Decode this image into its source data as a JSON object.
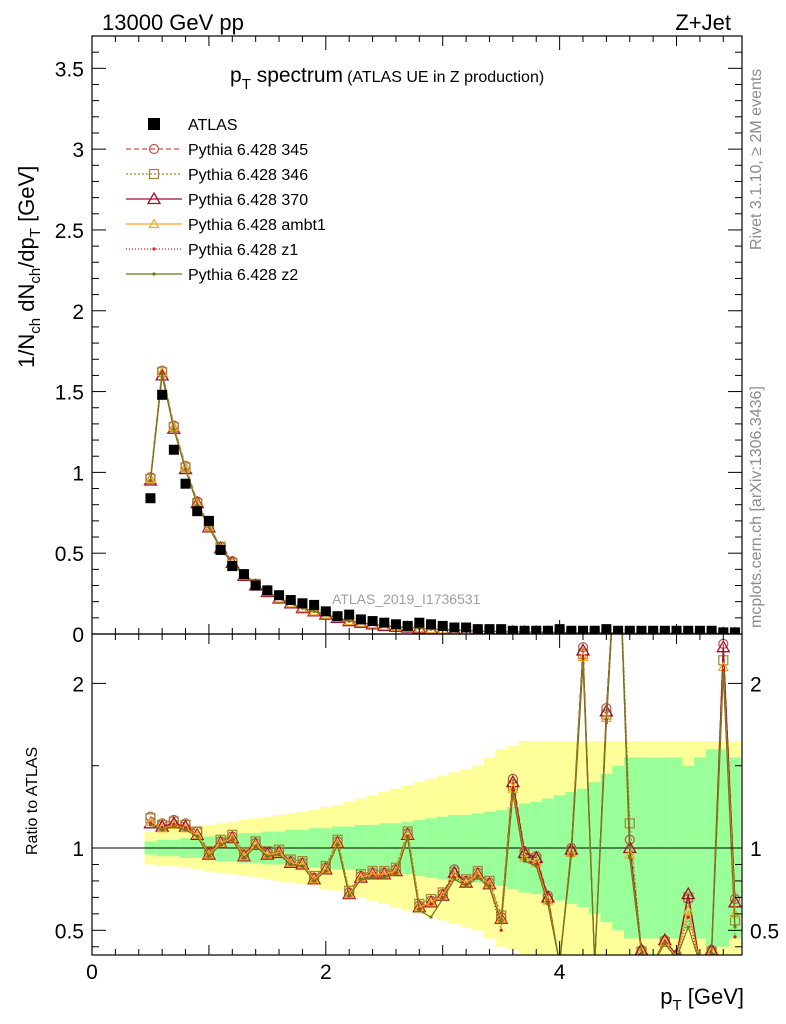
{
  "header": {
    "left": "13000 GeV pp",
    "right": "Z+Jet"
  },
  "side_labels": {
    "rivet": "Rivet 3.1.10, ≥ 2M events",
    "mcplots": "mcplots.cern.ch [arXiv:1306.3436]"
  },
  "chart_data": [
    {
      "type": "scatter",
      "title": "p_T spectrum",
      "title_main": "p",
      "title_sub": "T",
      "title_rest": " spectrum",
      "subtitle": "(ATLAS UE in Z production)",
      "ylabel": "1/N_ch dN_ch/dp_T [GeV]",
      "watermark": "ATLAS_2019_I1736531",
      "xlim": [
        0,
        5.56
      ],
      "ylim": [
        0,
        3.7
      ],
      "yticks": [
        0,
        0.5,
        1,
        1.5,
        2,
        2.5,
        3,
        3.5
      ],
      "ytick_labels": [
        "0",
        "0.5",
        "1",
        "1.5",
        "2",
        "2.5",
        "3",
        "3.5"
      ],
      "x": [
        0.5,
        0.6,
        0.7,
        0.8,
        0.9,
        1.0,
        1.1,
        1.2,
        1.3,
        1.4,
        1.5,
        1.6,
        1.7,
        1.8,
        1.9,
        2.0,
        2.1,
        2.2,
        2.3,
        2.4,
        2.5,
        2.6,
        2.7,
        2.8,
        2.9,
        3.0,
        3.1,
        3.2,
        3.3,
        3.4,
        3.5,
        3.6,
        3.7,
        3.8,
        3.9,
        4.0,
        4.1,
        4.2,
        4.3,
        4.4,
        4.5,
        4.6,
        4.7,
        4.8,
        4.9,
        5.0,
        5.1,
        5.2,
        5.3,
        5.4,
        5.5
      ],
      "series": [
        {
          "name": "ATLAS",
          "color": "#000000",
          "marker": "square",
          "values": [
            0.84,
            1.48,
            1.14,
            0.93,
            0.76,
            0.7,
            0.52,
            0.42,
            0.37,
            0.3,
            0.27,
            0.24,
            0.21,
            0.19,
            0.18,
            0.14,
            0.11,
            0.12,
            0.09,
            0.08,
            0.07,
            0.06,
            0.05,
            0.07,
            0.06,
            0.05,
            0.04,
            0.04,
            0.03,
            0.03,
            0.03,
            0.02,
            0.02,
            0.02,
            0.02,
            0.03,
            0.02,
            0.02,
            0.02,
            0.03,
            0.02,
            0.02,
            0.02,
            0.02,
            0.02,
            0.02,
            0.02,
            0.02,
            0.02,
            0.01,
            0.01
          ]
        },
        {
          "name": "Pythia 6.428 345",
          "color": "#c0504d",
          "marker": "circle",
          "dash": "5,3",
          "values": [
            0.97,
            1.63,
            1.29,
            1.04,
            0.82,
            0.67,
            0.54,
            0.45,
            0.37,
            0.31,
            0.26,
            0.22,
            0.19,
            0.16,
            0.14,
            0.12,
            0.1,
            0.08,
            0.07,
            0.06,
            0.05,
            0.045,
            0.04,
            0.035,
            0.03,
            0.027,
            0.024,
            0.021,
            0.019,
            0.017,
            0.015,
            0.013,
            0.012,
            0.011,
            0.01,
            0.009,
            0.008,
            0.007,
            0.007,
            0.006,
            0.006,
            0.005,
            0.005,
            0.004,
            0.004,
            0.004,
            0.003,
            0.003,
            0.003,
            0.003,
            0.002
          ]
        },
        {
          "name": "Pythia 6.428 346",
          "color": "#a0862f",
          "marker": "square-open",
          "dash": "2,2",
          "values": [
            0.96,
            1.62,
            1.28,
            1.03,
            0.81,
            0.67,
            0.54,
            0.44,
            0.37,
            0.31,
            0.26,
            0.22,
            0.19,
            0.16,
            0.14,
            0.12,
            0.1,
            0.08,
            0.07,
            0.06,
            0.05,
            0.045,
            0.04,
            0.035,
            0.03,
            0.027,
            0.024,
            0.021,
            0.019,
            0.017,
            0.015,
            0.013,
            0.012,
            0.011,
            0.01,
            0.009,
            0.008,
            0.007,
            0.007,
            0.006,
            0.006,
            0.005,
            0.005,
            0.004,
            0.004,
            0.004,
            0.003,
            0.003,
            0.003,
            0.003,
            0.002
          ]
        },
        {
          "name": "Pythia 6.428 370",
          "color": "#a0102a",
          "marker": "triangle",
          "dash": "",
          "values": [
            0.95,
            1.6,
            1.27,
            1.02,
            0.81,
            0.66,
            0.53,
            0.44,
            0.36,
            0.3,
            0.26,
            0.22,
            0.19,
            0.16,
            0.14,
            0.12,
            0.1,
            0.08,
            0.07,
            0.06,
            0.05,
            0.045,
            0.04,
            0.035,
            0.03,
            0.027,
            0.024,
            0.021,
            0.019,
            0.017,
            0.015,
            0.013,
            0.012,
            0.011,
            0.01,
            0.009,
            0.008,
            0.007,
            0.007,
            0.006,
            0.006,
            0.005,
            0.005,
            0.004,
            0.004,
            0.004,
            0.003,
            0.003,
            0.003,
            0.003,
            0.002
          ]
        },
        {
          "name": "Pythia 6.428 ambt1",
          "color": "#f5a623",
          "marker": "triangle-small",
          "dash": "",
          "values": [
            0.96,
            1.62,
            1.28,
            1.03,
            0.81,
            0.66,
            0.53,
            0.44,
            0.36,
            0.3,
            0.26,
            0.22,
            0.19,
            0.16,
            0.14,
            0.12,
            0.1,
            0.08,
            0.07,
            0.06,
            0.05,
            0.045,
            0.04,
            0.035,
            0.03,
            0.027,
            0.024,
            0.021,
            0.019,
            0.017,
            0.015,
            0.013,
            0.012,
            0.011,
            0.01,
            0.009,
            0.008,
            0.007,
            0.007,
            0.006,
            0.006,
            0.005,
            0.005,
            0.004,
            0.004,
            0.004,
            0.003,
            0.003,
            0.003,
            0.003,
            0.002
          ]
        },
        {
          "name": "Pythia 6.428 z1",
          "color": "#d42020",
          "marker": "dot",
          "dash": "1,2",
          "values": [
            0.95,
            1.61,
            1.27,
            1.02,
            0.8,
            0.66,
            0.53,
            0.44,
            0.36,
            0.3,
            0.26,
            0.22,
            0.19,
            0.16,
            0.14,
            0.12,
            0.1,
            0.08,
            0.07,
            0.06,
            0.05,
            0.045,
            0.04,
            0.035,
            0.03,
            0.027,
            0.024,
            0.021,
            0.019,
            0.017,
            0.015,
            0.013,
            0.012,
            0.011,
            0.01,
            0.009,
            0.008,
            0.007,
            0.007,
            0.006,
            0.006,
            0.005,
            0.005,
            0.004,
            0.004,
            0.004,
            0.003,
            0.003,
            0.003,
            0.003,
            0.002
          ]
        },
        {
          "name": "Pythia 6.428 z2",
          "color": "#6b7a1a",
          "marker": "dot",
          "dash": "",
          "values": [
            0.95,
            1.61,
            1.27,
            1.02,
            0.8,
            0.66,
            0.53,
            0.44,
            0.36,
            0.3,
            0.26,
            0.22,
            0.19,
            0.16,
            0.14,
            0.12,
            0.1,
            0.08,
            0.07,
            0.06,
            0.05,
            0.045,
            0.04,
            0.035,
            0.03,
            0.027,
            0.024,
            0.021,
            0.019,
            0.017,
            0.015,
            0.013,
            0.012,
            0.011,
            0.01,
            0.009,
            0.008,
            0.007,
            0.007,
            0.006,
            0.006,
            0.005,
            0.005,
            0.004,
            0.004,
            0.004,
            0.003,
            0.003,
            0.003,
            0.003,
            0.002
          ]
        }
      ]
    },
    {
      "type": "line",
      "ylabel": "Ratio to ATLAS",
      "xlabel": "p_T [GeV]",
      "xlabel_main": "p",
      "xlabel_sub": "T",
      "xlabel_rest": " [GeV]",
      "xlim": [
        0,
        5.56
      ],
      "ylim": [
        0.35,
        2.3
      ],
      "xticks": [
        0,
        2,
        4
      ],
      "xtick_labels": [
        "0",
        "2",
        "4"
      ],
      "yticks": [
        0.5,
        1,
        2
      ],
      "ytick_labels": [
        "0.5",
        "1",
        "2"
      ],
      "x": [
        0.5,
        0.6,
        0.7,
        0.8,
        0.9,
        1.0,
        1.1,
        1.2,
        1.3,
        1.4,
        1.5,
        1.6,
        1.7,
        1.8,
        1.9,
        2.0,
        2.1,
        2.2,
        2.3,
        2.4,
        2.5,
        2.6,
        2.7,
        2.8,
        2.9,
        3.0,
        3.1,
        3.2,
        3.3,
        3.4,
        3.5,
        3.6,
        3.7,
        3.8,
        3.9,
        4.0,
        4.1,
        4.2,
        4.3,
        4.4,
        4.5,
        4.6,
        4.7,
        4.8,
        4.9,
        5.0,
        5.1,
        5.2,
        5.3,
        5.4,
        5.5
      ],
      "band_stat": [
        0.04,
        0.05,
        0.05,
        0.06,
        0.06,
        0.07,
        0.08,
        0.08,
        0.09,
        0.09,
        0.1,
        0.1,
        0.11,
        0.11,
        0.12,
        0.12,
        0.13,
        0.13,
        0.14,
        0.14,
        0.15,
        0.15,
        0.16,
        0.17,
        0.18,
        0.19,
        0.2,
        0.2,
        0.21,
        0.22,
        0.23,
        0.25,
        0.27,
        0.28,
        0.3,
        0.32,
        0.34,
        0.36,
        0.4,
        0.45,
        0.5,
        0.55,
        0.55,
        0.55,
        0.55,
        0.55,
        0.5,
        0.55,
        0.6,
        0.6,
        0.55
      ],
      "band_total": [
        0.1,
        0.11,
        0.11,
        0.12,
        0.13,
        0.14,
        0.15,
        0.16,
        0.17,
        0.18,
        0.19,
        0.2,
        0.21,
        0.22,
        0.23,
        0.25,
        0.26,
        0.28,
        0.3,
        0.32,
        0.34,
        0.36,
        0.38,
        0.4,
        0.42,
        0.44,
        0.46,
        0.48,
        0.5,
        0.55,
        0.6,
        0.62,
        0.65,
        0.65,
        0.65,
        0.65,
        0.65,
        0.65,
        0.65,
        0.65,
        0.65,
        0.65,
        0.65,
        0.65,
        0.65,
        0.65,
        0.65,
        0.65,
        0.65,
        0.65,
        0.65
      ],
      "series": [
        {
          "name": "Pythia 6.428 345",
          "values": [
            1.19,
            1.15,
            1.17,
            1.15,
            1.1,
            0.97,
            1.04,
            1.07,
            0.96,
            1.03,
            0.97,
            0.98,
            0.92,
            0.91,
            0.82,
            0.88,
            1.04,
            0.73,
            0.83,
            0.85,
            0.85,
            0.87,
            1.09,
            0.65,
            0.68,
            0.72,
            0.87,
            0.8,
            0.85,
            0.79,
            0.58,
            1.42,
            0.98,
            0.95,
            0.71,
            0.3,
            1.0,
            2.22,
            0.3,
            1.85,
            3.0,
            1.05,
            0.38,
            0.3,
            0.44,
            0.35,
            0.69,
            0.3,
            0.38,
            2.24,
            0.69
          ]
        },
        {
          "name": "Pythia 6.428 346",
          "values": [
            1.18,
            1.14,
            1.16,
            1.14,
            1.1,
            0.98,
            1.05,
            1.08,
            0.97,
            1.04,
            0.98,
            0.99,
            0.93,
            0.92,
            0.83,
            0.89,
            1.05,
            0.74,
            0.84,
            0.86,
            0.86,
            0.88,
            1.1,
            0.66,
            0.69,
            0.73,
            0.85,
            0.81,
            0.86,
            0.8,
            0.59,
            1.38,
            0.96,
            0.93,
            0.69,
            0.3,
            0.98,
            2.18,
            0.3,
            1.81,
            3.0,
            1.15,
            0.37,
            0.3,
            0.43,
            0.34,
            0.7,
            0.3,
            0.37,
            2.14,
            0.56
          ]
        },
        {
          "name": "Pythia 6.428 370",
          "values": [
            1.15,
            1.13,
            1.15,
            1.13,
            1.08,
            0.96,
            1.03,
            1.06,
            0.95,
            1.02,
            0.96,
            0.97,
            0.91,
            0.9,
            0.81,
            0.87,
            1.03,
            0.72,
            0.82,
            0.84,
            0.84,
            0.86,
            1.08,
            0.64,
            0.67,
            0.71,
            0.85,
            0.79,
            0.84,
            0.78,
            0.57,
            1.4,
            0.97,
            0.94,
            0.7,
            0.3,
            0.99,
            2.2,
            0.3,
            1.83,
            3.0,
            1.0,
            0.38,
            0.3,
            0.44,
            0.35,
            0.72,
            0.3,
            0.38,
            2.22,
            0.67
          ]
        },
        {
          "name": "Pythia 6.428 ambt1",
          "values": [
            1.16,
            1.12,
            1.14,
            1.12,
            1.08,
            0.96,
            1.03,
            1.06,
            0.95,
            1.02,
            0.96,
            0.97,
            0.91,
            0.9,
            0.81,
            0.87,
            1.03,
            0.72,
            0.82,
            0.84,
            0.84,
            0.86,
            1.08,
            0.64,
            0.67,
            0.71,
            0.83,
            0.79,
            0.84,
            0.78,
            0.57,
            1.36,
            0.94,
            0.91,
            0.68,
            0.3,
            0.97,
            2.16,
            0.3,
            1.79,
            3.0,
            0.96,
            0.37,
            0.3,
            0.43,
            0.34,
            0.62,
            0.3,
            0.37,
            2.1,
            0.6
          ]
        },
        {
          "name": "Pythia 6.428 z1",
          "values": [
            1.15,
            1.12,
            1.14,
            1.12,
            1.07,
            0.95,
            1.02,
            1.05,
            0.94,
            1.01,
            0.95,
            0.96,
            0.9,
            0.89,
            0.8,
            0.86,
            1.02,
            0.71,
            0.81,
            0.83,
            0.83,
            0.85,
            1.07,
            0.63,
            0.66,
            0.7,
            0.82,
            0.78,
            0.83,
            0.77,
            0.5,
            1.35,
            0.93,
            0.9,
            0.67,
            0.3,
            0.96,
            2.15,
            0.3,
            1.78,
            3.0,
            0.95,
            0.36,
            0.3,
            0.42,
            0.33,
            0.58,
            0.3,
            0.36,
            2.08,
            0.46
          ]
        },
        {
          "name": "Pythia 6.428 z2",
          "values": [
            1.14,
            1.11,
            1.13,
            1.11,
            1.07,
            0.95,
            1.02,
            1.05,
            0.94,
            1.01,
            0.95,
            0.96,
            0.9,
            0.89,
            0.8,
            0.86,
            1.02,
            0.71,
            0.81,
            0.82,
            0.82,
            0.84,
            1.06,
            0.62,
            0.58,
            0.69,
            0.81,
            0.77,
            0.82,
            0.76,
            0.55,
            1.33,
            0.92,
            0.89,
            0.66,
            0.3,
            0.95,
            2.12,
            0.3,
            1.76,
            3.0,
            0.94,
            0.36,
            0.3,
            0.42,
            0.33,
            0.52,
            0.3,
            0.36,
            2.06,
            0.52
          ]
        }
      ]
    }
  ]
}
